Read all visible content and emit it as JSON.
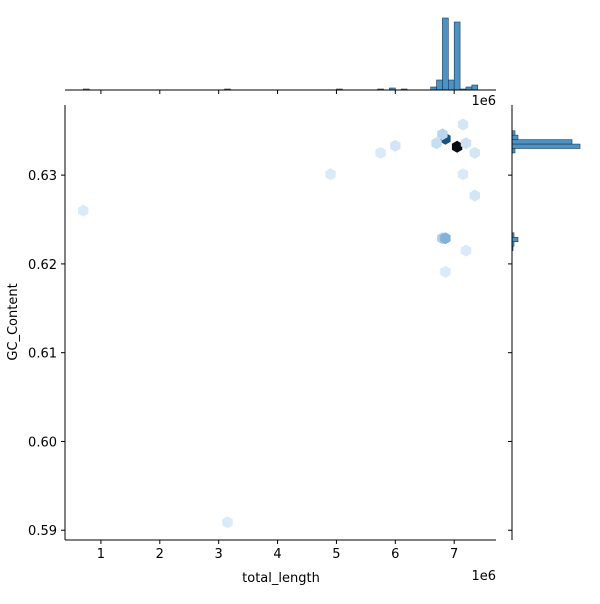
{
  "chart_data": {
    "type": "hexbin-joint",
    "x_label": "total_length",
    "y_label": "GC_Content",
    "x_offset_label": "1e6",
    "xlim": [
      390000,
      7710000
    ],
    "xticks": [
      {
        "value": 1000000,
        "label": "1"
      },
      {
        "value": 2000000,
        "label": "2"
      },
      {
        "value": 3000000,
        "label": "3"
      },
      {
        "value": 4000000,
        "label": "4"
      },
      {
        "value": 5000000,
        "label": "5"
      },
      {
        "value": 6000000,
        "label": "6"
      },
      {
        "value": 7000000,
        "label": "7"
      }
    ],
    "ylim": [
      0.5889,
      0.6379
    ],
    "yticks": [
      0.59,
      {
        "value": 0.6,
        "label": "0.60"
      },
      0.61,
      0.62,
      0.63
    ],
    "hexbins": {
      "x": [
        6850000,
        7050000,
        6800000,
        6850000,
        6800000,
        6700000,
        7200000,
        6000000,
        5750000,
        7350000,
        7350000,
        6850000,
        7150000,
        4900000,
        700000,
        3150000,
        7200000,
        7150000
      ],
      "y": [
        0.6341,
        0.6332,
        0.6229,
        0.6229,
        0.6346,
        0.6336,
        0.6336,
        0.6333,
        0.6325,
        0.6325,
        0.6277,
        0.6191,
        0.6301,
        0.6301,
        0.626,
        0.5909,
        0.6215,
        0.6357
      ],
      "counts": [
        40,
        60,
        8,
        15,
        6,
        4,
        3,
        2,
        1,
        2,
        2,
        1,
        1,
        1,
        1,
        1,
        1,
        2
      ]
    },
    "hex_color": "#1f77b4",
    "x_hist": {
      "color": "#1f77b4",
      "ylim": [
        0,
        75
      ],
      "bins": [
        700000,
        800000,
        900000,
        1000000,
        1100000,
        1200000,
        1300000,
        1400000,
        1500000,
        1600000,
        1700000,
        1800000,
        1900000,
        2000000,
        2100000,
        2200000,
        2300000,
        2400000,
        2500000,
        2600000,
        2700000,
        2800000,
        2900000,
        3000000,
        3100000,
        3200000,
        3300000,
        3400000,
        3500000,
        3600000,
        3700000,
        3800000,
        3900000,
        4000000,
        4100000,
        4200000,
        4300000,
        4400000,
        4500000,
        4600000,
        4700000,
        4800000,
        4900000,
        5000000,
        5100000,
        5200000,
        5300000,
        5400000,
        5500000,
        5600000,
        5700000,
        5800000,
        5900000,
        6000000,
        6100000,
        6200000,
        6300000,
        6400000,
        6500000,
        6600000,
        6700000,
        6800000,
        6900000,
        7000000,
        7100000,
        7200000,
        7300000,
        7400000
      ],
      "counts": [
        1,
        0,
        0,
        0,
        0,
        0,
        0,
        0,
        0,
        0,
        0,
        0,
        0,
        0,
        0,
        0,
        0,
        0,
        0,
        0,
        0,
        0,
        0,
        0,
        1,
        0,
        0,
        0,
        0,
        0,
        0,
        0,
        0,
        0,
        0,
        0,
        0,
        0,
        0,
        0,
        0,
        0,
        0,
        1,
        0,
        0,
        0,
        0,
        0,
        0,
        1,
        0,
        2,
        0,
        1,
        0,
        0,
        0,
        0,
        3,
        10,
        72,
        10,
        68,
        1,
        3,
        5
      ]
    },
    "y_hist": {
      "color": "#1f77b4",
      "xlim": [
        0,
        70
      ],
      "bins": [
        0.6215,
        0.622,
        0.6225,
        0.623,
        0.6235,
        0.624,
        0.6245,
        0.625,
        0.6255,
        0.626,
        0.6265,
        0.627,
        0.6275,
        0.628,
        0.6285,
        0.629,
        0.6295,
        0.63,
        0.6305,
        0.631,
        0.6315,
        0.632,
        0.6325,
        0.633,
        0.6335,
        0.634,
        0.6345,
        0.635,
        0.6355
      ],
      "counts": [
        1,
        2,
        6,
        2,
        0,
        0,
        0,
        0,
        0,
        0,
        0,
        0,
        0,
        0,
        0,
        0,
        0,
        0,
        0,
        0,
        0,
        0,
        3,
        68,
        60,
        6,
        3,
        0
      ]
    }
  }
}
